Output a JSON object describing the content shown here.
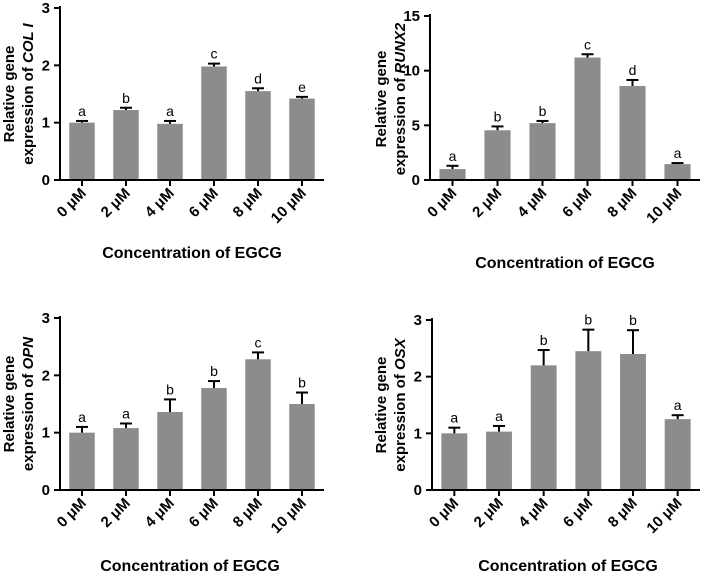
{
  "colors": {
    "bar": "#8c8c8c",
    "axis": "#000000",
    "error_bar": "#000000"
  },
  "chart_data": [
    {
      "type": "bar",
      "panel": "top-left",
      "categories": [
        "0 μM",
        "2 μM",
        "4 μM",
        "6 μM",
        "8 μM",
        "10 μM"
      ],
      "values": [
        1.0,
        1.22,
        0.98,
        1.98,
        1.55,
        1.42
      ],
      "errors": [
        0.03,
        0.04,
        0.05,
        0.05,
        0.05,
        0.03
      ],
      "labels": [
        "a",
        "b",
        "a",
        "c",
        "d",
        "e"
      ],
      "ylabel_line1": "Relative gene",
      "ylabel_line2_prefix": "expression of",
      "gene": "COL I",
      "xlabel": "Concentration of EGCG",
      "ylim": [
        0,
        3
      ],
      "yticks": [
        0,
        1,
        2,
        3
      ]
    },
    {
      "type": "bar",
      "panel": "top-right",
      "categories": [
        "0 μM",
        "2 μM",
        "4 μM",
        "6 μM",
        "8 μM",
        "10 μM"
      ],
      "values": [
        1.0,
        4.55,
        5.2,
        11.2,
        8.6,
        1.45
      ],
      "errors": [
        0.3,
        0.35,
        0.2,
        0.3,
        0.55,
        0.1
      ],
      "labels": [
        "a",
        "b",
        "b",
        "c",
        "d",
        "a"
      ],
      "ylabel_line1": "Relative gene",
      "ylabel_line2_prefix": "expression of",
      "gene": "RUNX2",
      "xlabel": "Concentration of EGCG",
      "ylim": [
        0,
        15
      ],
      "yticks": [
        0,
        5,
        10,
        15
      ]
    },
    {
      "type": "bar",
      "panel": "bottom-left",
      "categories": [
        "0 μM",
        "2 μM",
        "4 μM",
        "6 μM",
        "8 μM",
        "10 μM"
      ],
      "values": [
        1.0,
        1.08,
        1.36,
        1.78,
        2.28,
        1.5
      ],
      "errors": [
        0.1,
        0.08,
        0.22,
        0.12,
        0.12,
        0.2
      ],
      "labels": [
        "a",
        "a",
        "b",
        "b",
        "c",
        "b"
      ],
      "ylabel_line1": "Relative gene",
      "ylabel_line2_prefix": "expression of",
      "gene": "OPN",
      "xlabel": "Concentration of EGCG",
      "ylim": [
        0,
        3
      ],
      "yticks": [
        0,
        1,
        2,
        3
      ]
    },
    {
      "type": "bar",
      "panel": "bottom-right",
      "categories": [
        "0 μM",
        "2 μM",
        "4 μM",
        "6 μM",
        "8 μM",
        "10 μM"
      ],
      "values": [
        1.0,
        1.03,
        2.2,
        2.45,
        2.4,
        1.25
      ],
      "errors": [
        0.1,
        0.1,
        0.27,
        0.38,
        0.42,
        0.07
      ],
      "labels": [
        "a",
        "a",
        "b",
        "b",
        "b",
        "a"
      ],
      "ylabel_line1": "Relative gene",
      "ylabel_line2_prefix": "expression of",
      "gene": "OSX",
      "xlabel": "Concentration of EGCG",
      "ylim": [
        0,
        3
      ],
      "yticks": [
        0,
        1,
        2,
        3
      ]
    }
  ]
}
